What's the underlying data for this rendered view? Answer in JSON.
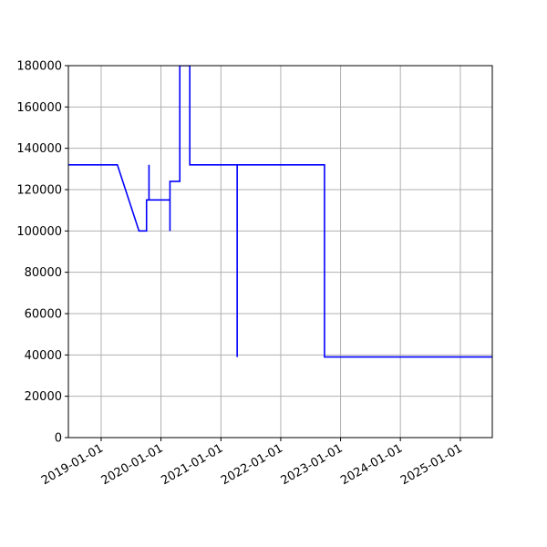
{
  "chart_data": {
    "type": "line",
    "title": "",
    "xlabel": "",
    "ylabel": "",
    "x_type": "date",
    "xlim": [
      "2018-06-15",
      "2025-07-15"
    ],
    "ylim": [
      0,
      180000
    ],
    "grid": true,
    "x_ticks": [
      "2019-01-01",
      "2020-01-01",
      "2021-01-01",
      "2022-01-01",
      "2023-01-01",
      "2024-01-01",
      "2025-01-01"
    ],
    "y_ticks": [
      0,
      20000,
      40000,
      60000,
      80000,
      100000,
      120000,
      140000,
      160000,
      180000
    ],
    "series": [
      {
        "color": "#0000ff",
        "points": [
          {
            "x": "2018-06-15",
            "y": 132000
          },
          {
            "x": "2019-04-10",
            "y": 132000
          },
          {
            "x": "2019-08-20",
            "y": 100000
          },
          {
            "x": "2019-10-05",
            "y": 100000
          },
          {
            "x": "2019-10-05",
            "y": 115000
          },
          {
            "x": "2019-10-20",
            "y": 115000
          },
          {
            "x": "2019-10-20",
            "y": 132000
          },
          {
            "x": "2019-10-20",
            "y": 115000
          },
          {
            "x": "2020-02-25",
            "y": 115000
          },
          {
            "x": "2020-02-25",
            "y": 100000
          },
          {
            "x": "2020-02-25",
            "y": 124000
          },
          {
            "x": "2020-04-25",
            "y": 124000
          },
          {
            "x": "2020-04-25",
            "y": 180000
          },
          {
            "x": "2020-06-25",
            "y": 180000
          },
          {
            "x": "2020-06-25",
            "y": 132000
          },
          {
            "x": "2021-04-10",
            "y": 132000
          },
          {
            "x": "2021-04-10",
            "y": 39000
          },
          {
            "x": "2021-04-10",
            "y": 132000
          },
          {
            "x": "2022-09-25",
            "y": 132000
          },
          {
            "x": "2022-09-25",
            "y": 39000
          },
          {
            "x": "2025-07-15",
            "y": 39000
          }
        ]
      }
    ]
  }
}
